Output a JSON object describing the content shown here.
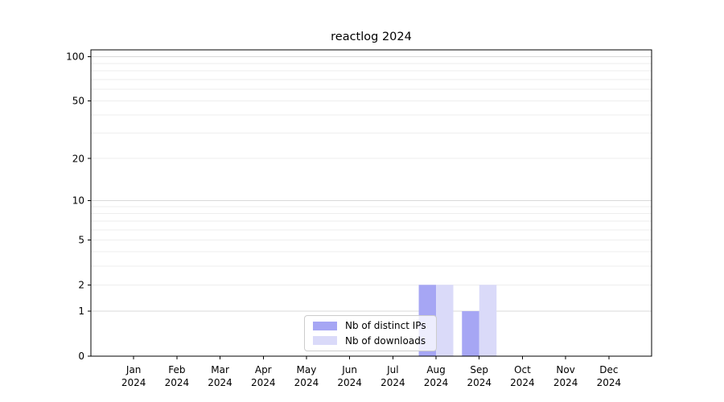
{
  "chart_data": {
    "type": "bar",
    "title": "reactlog 2024",
    "xlabel": "",
    "ylabel": "",
    "yscale": "log1p",
    "ylim": [
      0,
      111
    ],
    "yticks": [
      100,
      50,
      20,
      10,
      5,
      2,
      1,
      0
    ],
    "grid_major": [
      100,
      10,
      1
    ],
    "grid_minor": [
      90,
      80,
      70,
      60,
      50,
      40,
      30,
      20,
      9,
      8,
      7,
      6,
      5,
      4,
      3,
      2
    ],
    "grid": "on",
    "legend_position": "lower center",
    "categories": [
      {
        "month": "Jan",
        "year": "2024"
      },
      {
        "month": "Feb",
        "year": "2024"
      },
      {
        "month": "Mar",
        "year": "2024"
      },
      {
        "month": "Apr",
        "year": "2024"
      },
      {
        "month": "May",
        "year": "2024"
      },
      {
        "month": "Jun",
        "year": "2024"
      },
      {
        "month": "Jul",
        "year": "2024"
      },
      {
        "month": "Aug",
        "year": "2024"
      },
      {
        "month": "Sep",
        "year": "2024"
      },
      {
        "month": "Oct",
        "year": "2024"
      },
      {
        "month": "Nov",
        "year": "2024"
      },
      {
        "month": "Dec",
        "year": "2024"
      }
    ],
    "series": [
      {
        "name": "Nb of distinct IPs",
        "color": "#a6a6f4",
        "values": [
          0,
          0,
          0,
          0,
          0,
          0,
          0,
          2,
          1,
          0,
          0,
          0
        ]
      },
      {
        "name": "Nb of downloads",
        "color": "#dadaf9",
        "values": [
          0,
          0,
          0,
          0,
          0,
          0,
          0,
          2,
          2,
          0,
          0,
          0
        ]
      }
    ]
  },
  "style_colors": {
    "grid_major": "#d9d9d9",
    "grid_minor": "#eeeeee",
    "axis": "#000000"
  }
}
